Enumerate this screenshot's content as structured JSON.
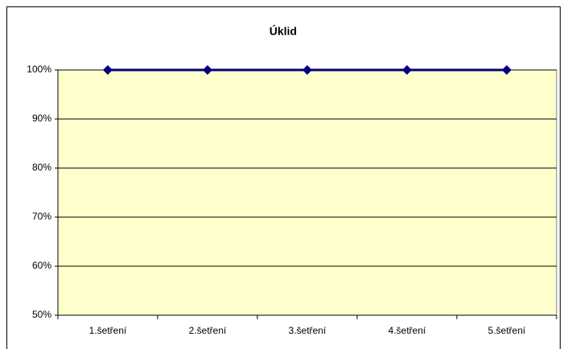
{
  "chart_data": {
    "type": "line",
    "title": "Úklid",
    "categories": [
      "1.šetření",
      "2.šetření",
      "3.šetření",
      "4.šetření",
      "5.šetření"
    ],
    "series": [
      {
        "color": "#000080",
        "values": [
          100,
          100,
          100,
          100,
          100
        ]
      }
    ],
    "ylim": [
      50,
      100
    ],
    "yticks": [
      {
        "value": 50,
        "label": "50%"
      },
      {
        "value": 60,
        "label": "60%"
      },
      {
        "value": 70,
        "label": "70%"
      },
      {
        "value": 80,
        "label": "80%"
      },
      {
        "value": 90,
        "label": "90%"
      },
      {
        "value": 100,
        "label": "100%"
      }
    ],
    "grid": true,
    "plot_background": "#ffffcc"
  }
}
